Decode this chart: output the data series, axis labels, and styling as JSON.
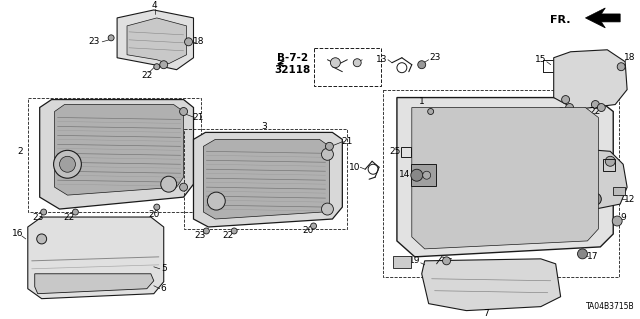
{
  "background_color": "#ffffff",
  "diagram_code": "TA04B3715B",
  "line_color": "#1a1a1a",
  "label_fontsize": 6.5,
  "fig_width": 6.4,
  "fig_height": 3.19,
  "dpi": 100
}
